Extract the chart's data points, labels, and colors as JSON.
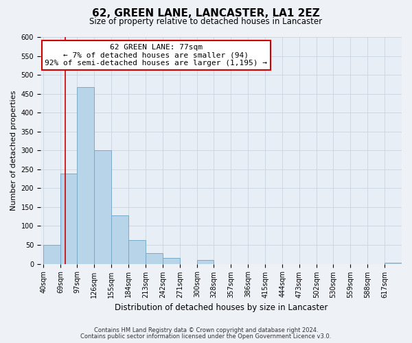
{
  "title": "62, GREEN LANE, LANCASTER, LA1 2EZ",
  "subtitle": "Size of property relative to detached houses in Lancaster",
  "xlabel": "Distribution of detached houses by size in Lancaster",
  "ylabel": "Number of detached properties",
  "bar_color": "#b8d4e8",
  "bar_edge_color": "#7aaac8",
  "annotation_title": "62 GREEN LANE: 77sqm",
  "annotation_line1": "← 7% of detached houses are smaller (94)",
  "annotation_line2": "92% of semi-detached houses are larger (1,195) →",
  "vline_x": 77,
  "vline_color": "#cc0000",
  "annotation_box_facecolor": "#ffffff",
  "annotation_box_edgecolor": "#cc0000",
  "categories": [
    "40sqm",
    "69sqm",
    "97sqm",
    "126sqm",
    "155sqm",
    "184sqm",
    "213sqm",
    "242sqm",
    "271sqm",
    "300sqm",
    "328sqm",
    "357sqm",
    "386sqm",
    "415sqm",
    "444sqm",
    "473sqm",
    "502sqm",
    "530sqm",
    "559sqm",
    "588sqm",
    "617sqm"
  ],
  "bin_edges": [
    40,
    69,
    97,
    126,
    155,
    184,
    213,
    242,
    271,
    300,
    328,
    357,
    386,
    415,
    444,
    473,
    502,
    530,
    559,
    588,
    617,
    646
  ],
  "values": [
    50,
    238,
    468,
    300,
    128,
    62,
    28,
    15,
    0,
    10,
    0,
    0,
    0,
    0,
    0,
    0,
    0,
    0,
    0,
    0,
    3
  ],
  "ylim": [
    0,
    600
  ],
  "yticks": [
    0,
    50,
    100,
    150,
    200,
    250,
    300,
    350,
    400,
    450,
    500,
    550,
    600
  ],
  "footnote1": "Contains HM Land Registry data © Crown copyright and database right 2024.",
  "footnote2": "Contains public sector information licensed under the Open Government Licence v3.0.",
  "bg_color": "#eef2f7",
  "plot_bg_color": "#e8eef5",
  "grid_color": "#c8d4e0",
  "title_fontsize": 11,
  "subtitle_fontsize": 8.5,
  "ylabel_fontsize": 8,
  "xlabel_fontsize": 8.5,
  "tick_fontsize": 7,
  "annotation_fontsize": 8,
  "footnote_fontsize": 6
}
